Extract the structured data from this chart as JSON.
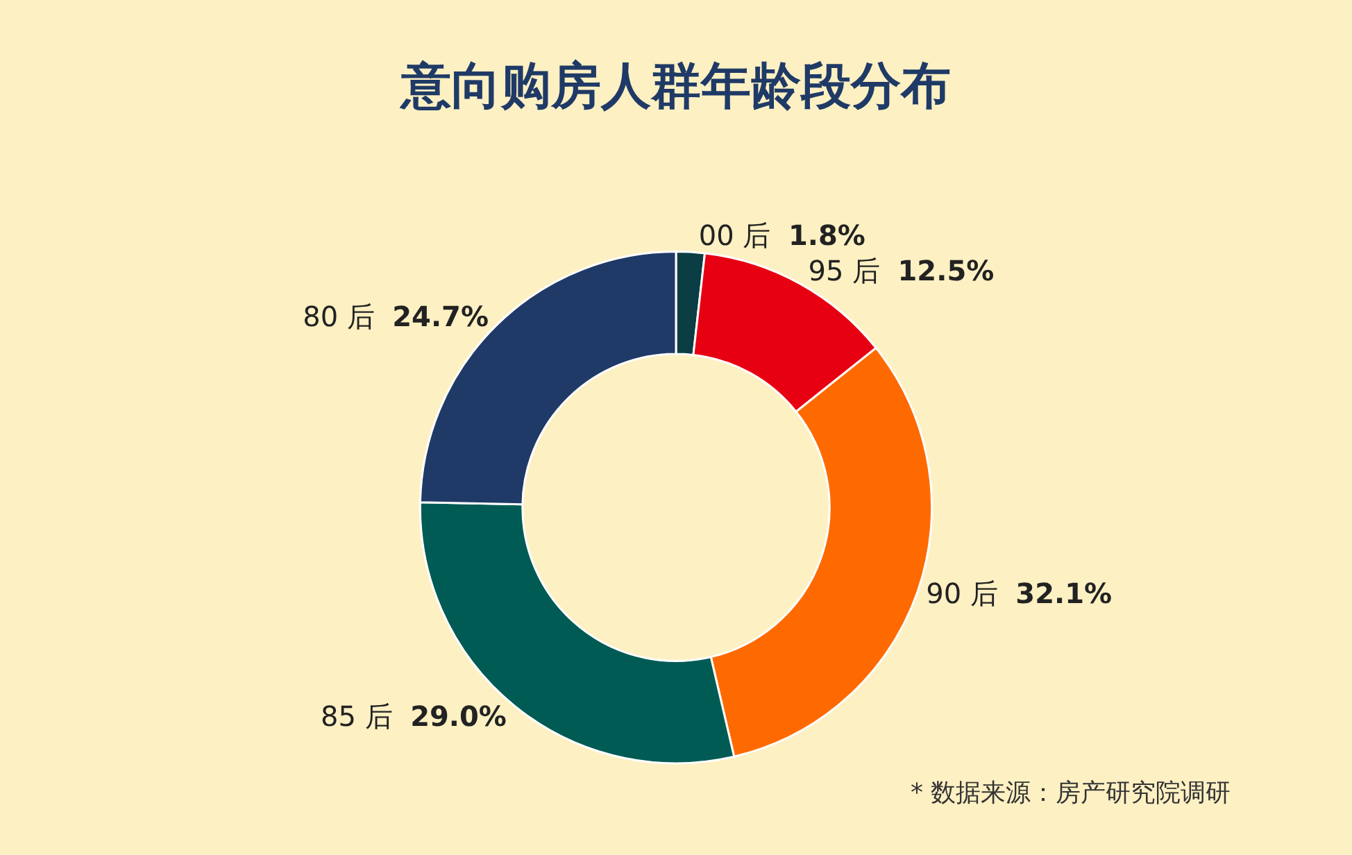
{
  "chart_data": {
    "type": "donut",
    "title": "意向购房人群年龄段分布",
    "categories": [
      "00 后",
      "95 后",
      "90 后",
      "85 后",
      "80 后"
    ],
    "values": [
      1.8,
      12.5,
      32.1,
      29.0,
      24.7
    ],
    "colors": [
      "#0b3d44",
      "#e60012",
      "#ff6a00",
      "#005b55",
      "#1f3a66"
    ],
    "value_labels": [
      "1.8%",
      "12.5%",
      "32.1%",
      "29.0%",
      "24.7%"
    ],
    "legend": false,
    "annotations": [
      "* 数据来源：房产研究院调研"
    ]
  }
}
